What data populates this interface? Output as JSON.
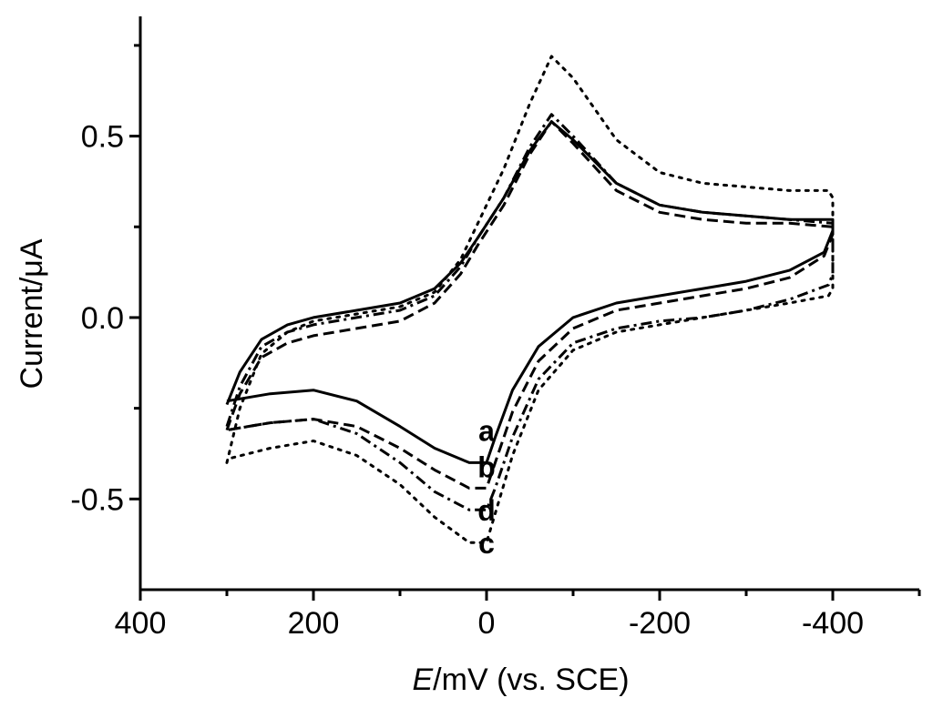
{
  "chart_data": {
    "type": "line",
    "title": "",
    "xlabel_italic": "E",
    "xlabel_rest": "/mV (vs. SCE)",
    "ylabel": "Current/μA",
    "xlim": [
      400,
      -500
    ],
    "ylim": [
      -0.75,
      0.83
    ],
    "x_ticks": [
      400,
      200,
      0,
      -200,
      -400
    ],
    "x_tick_labels": [
      "400",
      "200",
      "0",
      "-200",
      "-400"
    ],
    "y_ticks": [
      -0.5,
      0.0,
      0.5
    ],
    "y_tick_labels": [
      "-0.5",
      "0.0",
      "0.5"
    ],
    "x_minor_ticks": [
      300,
      100,
      -100,
      -300,
      -500
    ],
    "y_minor_ticks": [
      -0.25,
      0.25,
      0.75
    ],
    "grid": false,
    "series": [
      {
        "name": "a",
        "style": "solid",
        "forward": [
          [
            300,
            -0.24
          ],
          [
            285,
            -0.15
          ],
          [
            260,
            -0.06
          ],
          [
            230,
            -0.02
          ],
          [
            200,
            0.0
          ],
          [
            150,
            0.02
          ],
          [
            100,
            0.04
          ],
          [
            60,
            0.08
          ],
          [
            30,
            0.15
          ],
          [
            10,
            0.22
          ],
          [
            -20,
            0.33
          ],
          [
            -50,
            0.46
          ],
          [
            -75,
            0.54
          ],
          [
            -100,
            0.49
          ],
          [
            -150,
            0.37
          ],
          [
            -200,
            0.31
          ],
          [
            -250,
            0.29
          ],
          [
            -300,
            0.28
          ],
          [
            -350,
            0.27
          ],
          [
            -400,
            0.27
          ]
        ],
        "reverse": [
          [
            -400,
            0.24
          ],
          [
            -390,
            0.18
          ],
          [
            -350,
            0.13
          ],
          [
            -300,
            0.1
          ],
          [
            -250,
            0.08
          ],
          [
            -200,
            0.06
          ],
          [
            -150,
            0.04
          ],
          [
            -100,
            0.0
          ],
          [
            -60,
            -0.08
          ],
          [
            -30,
            -0.2
          ],
          [
            -10,
            -0.33
          ],
          [
            0,
            -0.4
          ],
          [
            20,
            -0.4
          ],
          [
            60,
            -0.36
          ],
          [
            100,
            -0.3
          ],
          [
            150,
            -0.23
          ],
          [
            200,
            -0.2
          ],
          [
            250,
            -0.21
          ],
          [
            300,
            -0.23
          ]
        ]
      },
      {
        "name": "b",
        "style": "dash",
        "forward": [
          [
            300,
            -0.31
          ],
          [
            285,
            -0.21
          ],
          [
            260,
            -0.11
          ],
          [
            230,
            -0.07
          ],
          [
            200,
            -0.05
          ],
          [
            150,
            -0.03
          ],
          [
            100,
            -0.01
          ],
          [
            60,
            0.04
          ],
          [
            30,
            0.12
          ],
          [
            10,
            0.2
          ],
          [
            -20,
            0.31
          ],
          [
            -50,
            0.45
          ],
          [
            -75,
            0.54
          ],
          [
            -100,
            0.48
          ],
          [
            -150,
            0.35
          ],
          [
            -200,
            0.29
          ],
          [
            -250,
            0.27
          ],
          [
            -300,
            0.26
          ],
          [
            -350,
            0.26
          ],
          [
            -400,
            0.25
          ]
        ],
        "reverse": [
          [
            -400,
            0.23
          ],
          [
            -390,
            0.17
          ],
          [
            -350,
            0.11
          ],
          [
            -300,
            0.08
          ],
          [
            -250,
            0.06
          ],
          [
            -200,
            0.04
          ],
          [
            -150,
            0.02
          ],
          [
            -100,
            -0.03
          ],
          [
            -60,
            -0.12
          ],
          [
            -30,
            -0.26
          ],
          [
            -10,
            -0.4
          ],
          [
            0,
            -0.47
          ],
          [
            20,
            -0.47
          ],
          [
            60,
            -0.42
          ],
          [
            100,
            -0.36
          ],
          [
            150,
            -0.3
          ],
          [
            200,
            -0.28
          ],
          [
            250,
            -0.29
          ],
          [
            300,
            -0.31
          ]
        ]
      },
      {
        "name": "c",
        "style": "dot",
        "forward": [
          [
            300,
            -0.4
          ],
          [
            285,
            -0.25
          ],
          [
            260,
            -0.1
          ],
          [
            230,
            -0.04
          ],
          [
            200,
            -0.01
          ],
          [
            150,
            0.01
          ],
          [
            100,
            0.03
          ],
          [
            60,
            0.07
          ],
          [
            30,
            0.16
          ],
          [
            10,
            0.26
          ],
          [
            -20,
            0.41
          ],
          [
            -50,
            0.59
          ],
          [
            -75,
            0.72
          ],
          [
            -100,
            0.66
          ],
          [
            -150,
            0.49
          ],
          [
            -200,
            0.4
          ],
          [
            -250,
            0.37
          ],
          [
            -300,
            0.36
          ],
          [
            -350,
            0.35
          ],
          [
            -395,
            0.35
          ],
          [
            -400,
            0.33
          ]
        ],
        "reverse": [
          [
            -400,
            0.08
          ],
          [
            -395,
            0.06
          ],
          [
            -350,
            0.04
          ],
          [
            -300,
            0.02
          ],
          [
            -250,
            0.0
          ],
          [
            -200,
            -0.02
          ],
          [
            -150,
            -0.04
          ],
          [
            -100,
            -0.09
          ],
          [
            -60,
            -0.2
          ],
          [
            -30,
            -0.38
          ],
          [
            -10,
            -0.54
          ],
          [
            0,
            -0.62
          ],
          [
            20,
            -0.62
          ],
          [
            60,
            -0.55
          ],
          [
            100,
            -0.46
          ],
          [
            150,
            -0.38
          ],
          [
            200,
            -0.34
          ],
          [
            250,
            -0.36
          ],
          [
            300,
            -0.39
          ]
        ]
      },
      {
        "name": "d",
        "style": "dashdot",
        "forward": [
          [
            300,
            -0.3
          ],
          [
            285,
            -0.19
          ],
          [
            260,
            -0.08
          ],
          [
            230,
            -0.04
          ],
          [
            200,
            -0.02
          ],
          [
            150,
            0.0
          ],
          [
            100,
            0.02
          ],
          [
            60,
            0.06
          ],
          [
            30,
            0.14
          ],
          [
            10,
            0.22
          ],
          [
            -20,
            0.33
          ],
          [
            -50,
            0.47
          ],
          [
            -75,
            0.56
          ],
          [
            -100,
            0.5
          ],
          [
            -150,
            0.37
          ],
          [
            -200,
            0.31
          ],
          [
            -250,
            0.29
          ],
          [
            -300,
            0.28
          ],
          [
            -350,
            0.27
          ],
          [
            -400,
            0.26
          ]
        ],
        "reverse": [
          [
            -400,
            0.12
          ],
          [
            -395,
            0.09
          ],
          [
            -350,
            0.05
          ],
          [
            -300,
            0.02
          ],
          [
            -250,
            0.0
          ],
          [
            -200,
            -0.01
          ],
          [
            -150,
            -0.03
          ],
          [
            -100,
            -0.07
          ],
          [
            -60,
            -0.17
          ],
          [
            -30,
            -0.33
          ],
          [
            -10,
            -0.47
          ],
          [
            0,
            -0.53
          ],
          [
            20,
            -0.53
          ],
          [
            60,
            -0.48
          ],
          [
            100,
            -0.4
          ],
          [
            150,
            -0.32
          ],
          [
            200,
            -0.28
          ],
          [
            250,
            -0.29
          ],
          [
            300,
            -0.31
          ]
        ]
      }
    ],
    "annotations": [
      {
        "text": "a",
        "x": 0,
        "y": -0.34
      },
      {
        "text": "b",
        "x": 0,
        "y": -0.44
      },
      {
        "text": "d",
        "x": 0,
        "y": -0.56
      },
      {
        "text": "c",
        "x": 0,
        "y": -0.65
      }
    ]
  }
}
